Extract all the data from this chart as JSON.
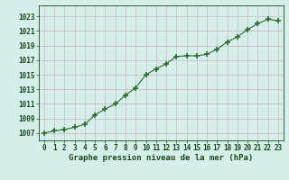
{
  "x": [
    0,
    1,
    2,
    3,
    4,
    5,
    6,
    7,
    8,
    9,
    10,
    11,
    12,
    13,
    14,
    15,
    16,
    17,
    18,
    19,
    20,
    21,
    22,
    23
  ],
  "y": [
    1007.0,
    1007.3,
    1007.5,
    1007.8,
    1008.2,
    1009.5,
    1010.3,
    1011.0,
    1012.2,
    1013.2,
    1015.0,
    1015.8,
    1016.5,
    1017.5,
    1017.6,
    1017.6,
    1017.8,
    1018.5,
    1019.5,
    1020.2,
    1021.2,
    1022.0,
    1022.6,
    1022.4
  ],
  "line_color": "#2d6e2d",
  "marker": "+",
  "marker_size": 4.0,
  "bg_color": "#d5eeea",
  "grid_color": "#c8b8c8",
  "xlabel": "Graphe pression niveau de la mer (hPa)",
  "xlabel_color": "#1a4a1a",
  "yticks": [
    1007,
    1009,
    1011,
    1013,
    1015,
    1017,
    1019,
    1021,
    1023
  ],
  "xticks": [
    0,
    1,
    2,
    3,
    4,
    5,
    6,
    7,
    8,
    9,
    10,
    11,
    12,
    13,
    14,
    15,
    16,
    17,
    18,
    19,
    20,
    21,
    22,
    23
  ],
  "ylim": [
    1006.0,
    1024.5
  ],
  "xlim": [
    -0.5,
    23.5
  ],
  "tick_color": "#1a4a1a",
  "tick_fontsize": 5.5,
  "xlabel_fontsize": 6.5,
  "linewidth": 0.8,
  "marker_thickness": 1.2
}
